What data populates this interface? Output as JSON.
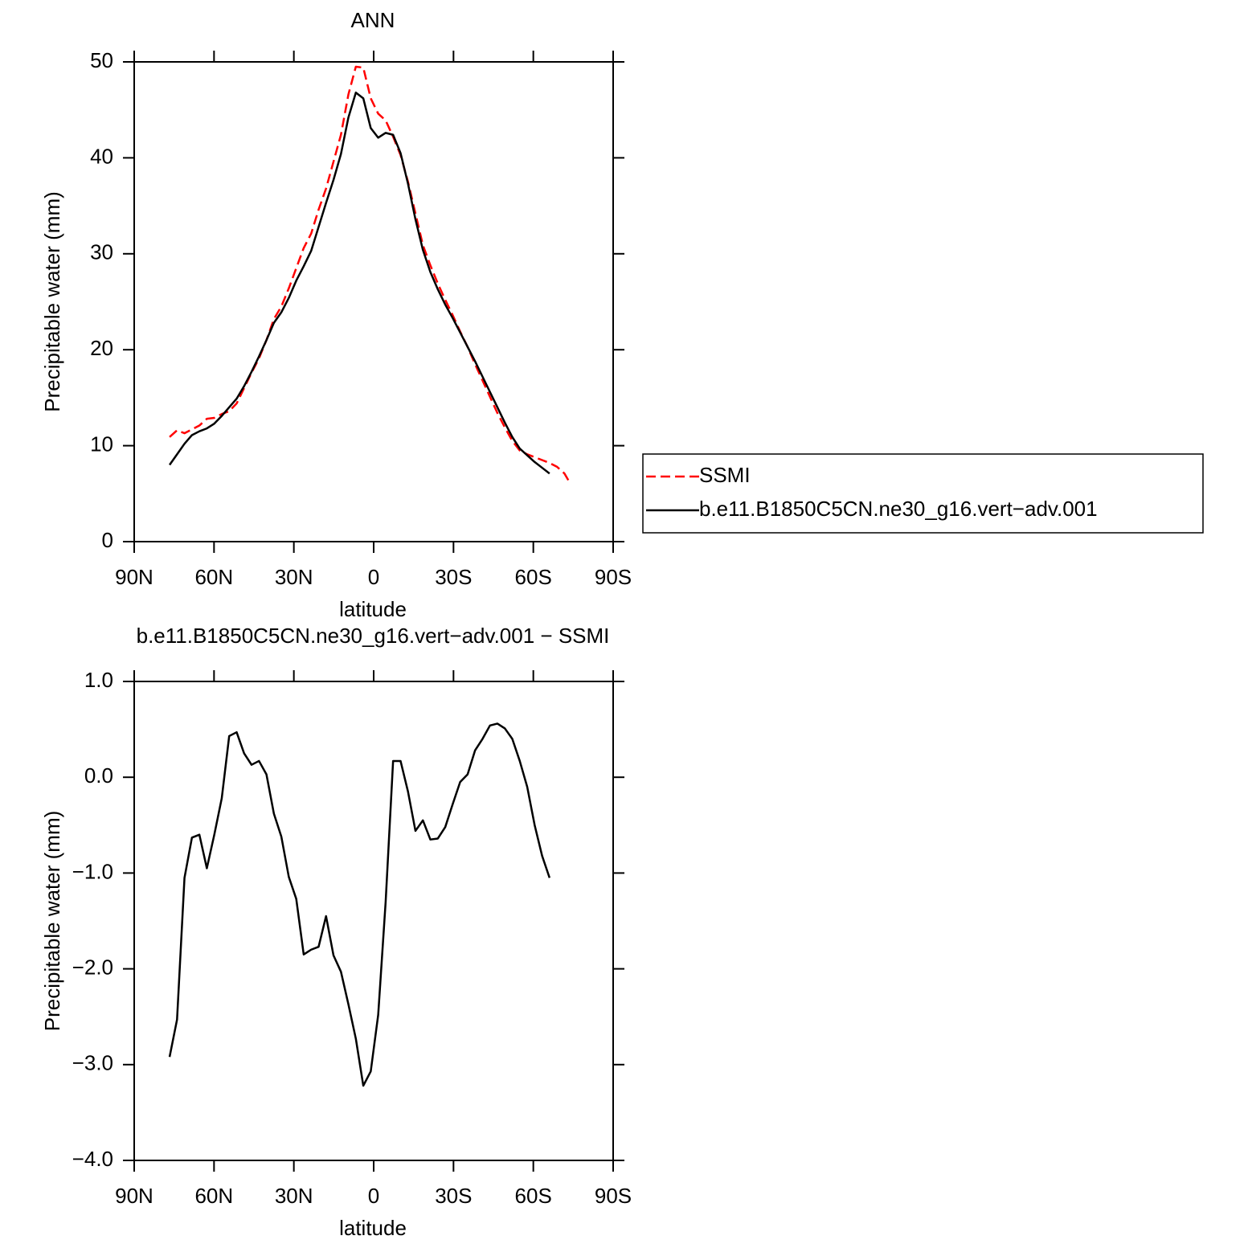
{
  "chart_data": [
    {
      "type": "line",
      "title": "ANN",
      "xlabel": "latitude",
      "ylabel": "Precipitable water (mm)",
      "xlim": [
        90,
        -90
      ],
      "xticks": [
        {
          "value": 90,
          "label": "90N"
        },
        {
          "value": 60,
          "label": "60N"
        },
        {
          "value": 30,
          "label": "30N"
        },
        0,
        {
          "value": -30,
          "label": "30S"
        },
        {
          "value": -60,
          "label": "60S"
        },
        {
          "value": -90,
          "label": "90S"
        }
      ],
      "ylim": [
        0,
        50
      ],
      "yticks": [
        0,
        10,
        20,
        30,
        40,
        50
      ],
      "legend": "right",
      "series": [
        {
          "name": "SSMI",
          "color": "#ff0000",
          "dashed": true,
          "x": [
            76.7,
            73.9,
            71.1,
            68.3,
            65.5,
            62.7,
            59.9,
            57.1,
            54.3,
            51.5,
            48.7,
            45.9,
            43.1,
            40.3,
            37.5,
            34.7,
            31.9,
            29.1,
            26.3,
            23.5,
            20.7,
            17.9,
            15.1,
            12.3,
            9.5,
            6.7,
            3.9,
            1.1,
            -1.7,
            -4.5,
            -7.3,
            -10.1,
            -12.9,
            -15.7,
            -18.5,
            -21.3,
            -24.1,
            -26.9,
            -29.7,
            -32.5,
            -35.3,
            -38.1,
            -40.9,
            -43.7,
            -46.5,
            -49.3,
            -52.1,
            -54.9,
            -57.7,
            -60.5,
            -63.3,
            -66.1,
            -68.9,
            -71.7,
            -74.0
          ],
          "values": [
            10.9,
            11.6,
            11.3,
            11.7,
            12.1,
            12.8,
            12.9,
            13.3,
            13.6,
            14.4,
            16.0,
            17.6,
            19.1,
            21.0,
            23.2,
            24.5,
            26.4,
            28.5,
            30.6,
            32.1,
            34.6,
            36.8,
            39.6,
            42.4,
            46.6,
            49.5,
            49.4,
            46.2,
            44.6,
            43.9,
            42.2,
            40.3,
            37.5,
            34.2,
            30.9,
            28.8,
            26.9,
            25.2,
            23.6,
            21.9,
            20.3,
            18.5,
            16.8,
            15.1,
            13.4,
            11.9,
            10.5,
            9.5,
            9.1,
            8.8,
            8.5,
            8.2,
            7.8,
            7.1,
            6.0
          ]
        },
        {
          "name": "b.e11.B1850C5CN.ne30_g16.vert−adv.001",
          "color": "#000000",
          "dashed": false,
          "x": [
            76.7,
            73.9,
            71.1,
            68.3,
            65.5,
            62.7,
            59.9,
            57.1,
            54.3,
            51.5,
            48.7,
            45.9,
            43.1,
            40.3,
            37.5,
            34.7,
            31.9,
            29.1,
            26.3,
            23.5,
            20.7,
            17.9,
            15.1,
            12.3,
            9.5,
            6.7,
            3.9,
            1.1,
            -1.7,
            -4.5,
            -7.3,
            -10.1,
            -12.9,
            -15.7,
            -18.5,
            -21.3,
            -24.1,
            -26.9,
            -29.7,
            -32.5,
            -35.3,
            -38.1,
            -40.9,
            -43.7,
            -46.5,
            -49.3,
            -52.1,
            -54.9,
            -57.7,
            -60.5,
            -63.3,
            -66.1
          ],
          "values": [
            8.0,
            9.1,
            10.2,
            11.1,
            11.5,
            11.8,
            12.3,
            13.1,
            14.0,
            14.9,
            16.2,
            17.7,
            19.3,
            21.0,
            22.8,
            23.9,
            25.4,
            27.2,
            28.7,
            30.3,
            32.8,
            35.3,
            37.7,
            40.4,
            44.2,
            46.8,
            46.2,
            43.1,
            42.1,
            42.6,
            42.4,
            40.5,
            37.3,
            33.6,
            30.4,
            28.1,
            26.3,
            24.7,
            23.3,
            21.8,
            20.3,
            18.8,
            17.2,
            15.6,
            14.0,
            12.4,
            10.9,
            9.7,
            9.0,
            8.3,
            7.7,
            7.1
          ]
        }
      ]
    },
    {
      "type": "line",
      "title": "b.e11.B1850C5CN.ne30_g16.vert−adv.001 − SSMI",
      "xlabel": "latitude",
      "ylabel": "Precipitable water (mm)",
      "xlim": [
        90,
        -90
      ],
      "xticks": [
        {
          "value": 90,
          "label": "90N"
        },
        {
          "value": 60,
          "label": "60N"
        },
        {
          "value": 30,
          "label": "30N"
        },
        0,
        {
          "value": -30,
          "label": "30S"
        },
        {
          "value": -60,
          "label": "60S"
        },
        {
          "value": -90,
          "label": "90S"
        }
      ],
      "ylim": [
        -4,
        1
      ],
      "yticks": [
        {
          "value": 1,
          "label": "1.0"
        },
        {
          "value": 0,
          "label": "0.0"
        },
        {
          "value": -1,
          "label": "−1.0"
        },
        {
          "value": -2,
          "label": "−2.0"
        },
        {
          "value": -3,
          "label": "−3.0"
        },
        {
          "value": -4,
          "label": "−4.0"
        }
      ],
      "color": "#000000",
      "x": [
        76.7,
        73.9,
        71.1,
        68.3,
        65.5,
        62.7,
        59.9,
        57.1,
        54.3,
        51.5,
        48.7,
        45.9,
        43.1,
        40.3,
        37.5,
        34.7,
        31.9,
        29.1,
        26.3,
        23.5,
        20.7,
        17.9,
        15.1,
        12.3,
        9.5,
        6.7,
        3.9,
        1.1,
        -1.7,
        -4.5,
        -7.3,
        -10.1,
        -12.9,
        -15.7,
        -18.5,
        -21.3,
        -24.1,
        -26.9,
        -29.7,
        -32.5,
        -35.3,
        -38.1,
        -40.9,
        -43.7,
        -46.5,
        -49.3,
        -52.1,
        -54.9,
        -57.7,
        -60.5,
        -63.3,
        -66.1
      ],
      "values": [
        -2.92,
        -2.53,
        -1.05,
        -0.63,
        -0.6,
        -0.95,
        -0.6,
        -0.22,
        0.43,
        0.47,
        0.25,
        0.13,
        0.17,
        0.03,
        -0.38,
        -0.62,
        -1.04,
        -1.27,
        -1.85,
        -1.8,
        -1.77,
        -1.45,
        -1.86,
        -2.03,
        -2.37,
        -2.73,
        -3.22,
        -3.07,
        -2.48,
        -1.3,
        0.17,
        0.17,
        -0.15,
        -0.56,
        -0.45,
        -0.65,
        -0.64,
        -0.52,
        -0.28,
        -0.05,
        0.03,
        0.28,
        0.4,
        0.54,
        0.56,
        0.51,
        0.4,
        0.17,
        -0.1,
        -0.5,
        -0.82,
        -1.05
      ]
    }
  ]
}
